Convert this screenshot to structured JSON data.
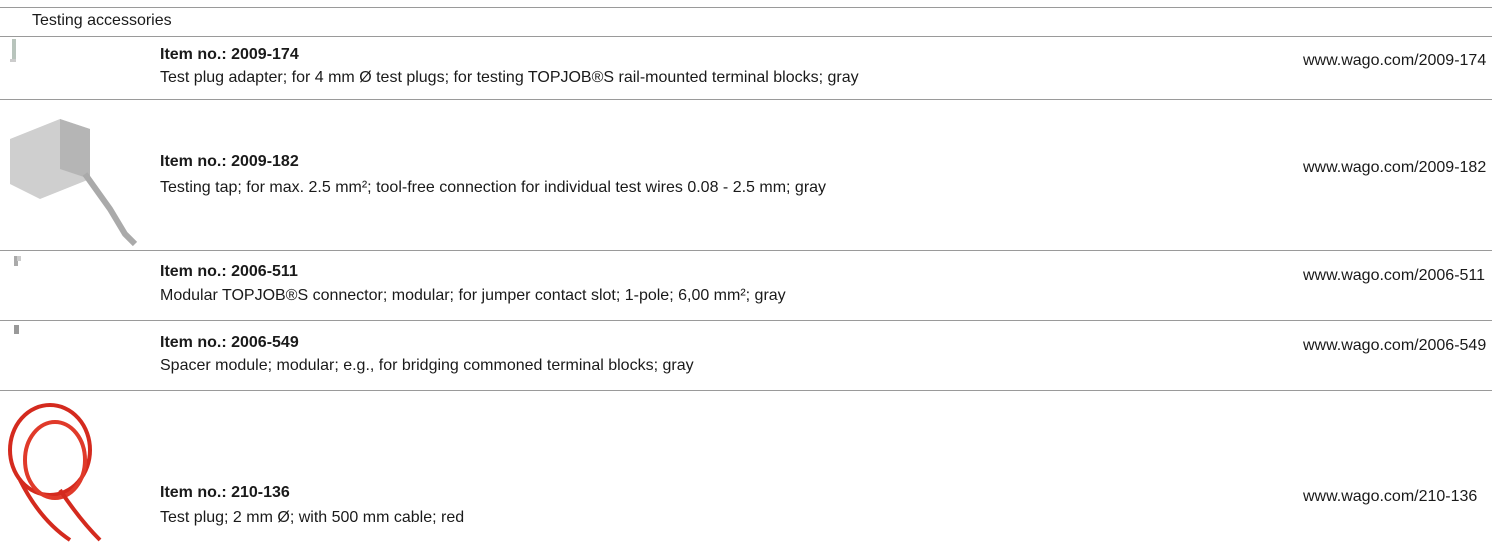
{
  "header": {
    "title": "Testing accessories"
  },
  "items": [
    {
      "item_no": "Item no.: 2009-174",
      "description": "Test plug adapter; for 4 mm Ø test plugs; for testing TOPJOB®S rail-mounted terminal blocks; gray",
      "url": "www.wago.com/2009-174"
    },
    {
      "item_no": "Item no.: 2009-182",
      "description": "Testing tap; for max. 2.5 mm²; tool-free connection for individual test wires 0.08 - 2.5 mm; gray",
      "url": "www.wago.com/2009-182"
    },
    {
      "item_no": "Item no.: 2006-511",
      "description": "Modular TOPJOB®S connector; modular; for jumper contact slot; 1-pole; 6,00 mm²; gray",
      "url": "www.wago.com/2006-511"
    },
    {
      "item_no": "Item no.: 2006-549",
      "description": "Spacer module; modular; e.g., for bridging commoned terminal blocks; gray",
      "url": "www.wago.com/2006-549"
    },
    {
      "item_no": "Item no.: 210-136",
      "description": "Test plug; 2 mm Ø; with 500 mm cable; red",
      "url": "www.wago.com/210-136"
    }
  ]
}
